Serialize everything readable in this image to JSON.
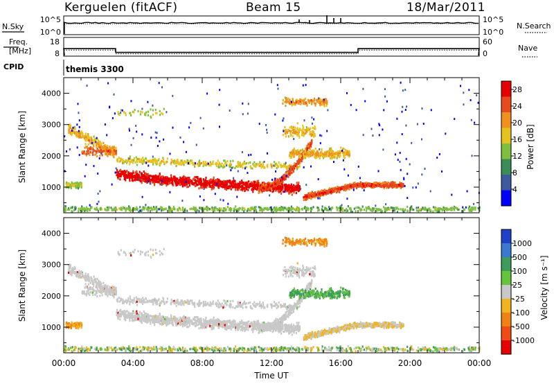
{
  "header": {
    "station": "Kerguelen (fitACF)",
    "beam": "Beam 15",
    "date": "18/Mar/2011"
  },
  "nsky_panel": {
    "left_label": "N.Sky",
    "left_ticks": [
      "10^5",
      "10^0"
    ],
    "right_ticks": [
      "10^5",
      "10^0"
    ],
    "right_label": "N.Search"
  },
  "freq_panel": {
    "left_label_line1": "Freq.",
    "left_label_line2": "[MHz]",
    "left_ticks": [
      "18",
      "8"
    ],
    "right_ticks": [
      "60",
      "0"
    ],
    "right_label": "Nave",
    "freq_steps": [
      {
        "start_hour": 0,
        "end_hour": 3,
        "mhz": 12
      },
      {
        "start_hour": 3,
        "end_hour": 17,
        "mhz": 10
      },
      {
        "start_hour": 17,
        "end_hour": 24,
        "mhz": 12
      }
    ]
  },
  "cpid": {
    "label": "CPID",
    "program": "themis 3300"
  },
  "chart_data": [
    {
      "type": "heatmap",
      "name": "power",
      "ylabel": "Slant Range [km]",
      "ylim": [
        180,
        4500
      ],
      "yticks": [
        "1000",
        "2000",
        "3000",
        "4000"
      ],
      "ytick_values": [
        1000,
        2000,
        3000,
        4000
      ],
      "colorbar_label": "Power [dB]",
      "colorbar_ticks": [
        "4",
        "8",
        "12",
        "16",
        "20",
        "24",
        "28"
      ],
      "colorbar_tick_values": [
        4,
        8,
        12,
        16,
        20,
        24,
        28
      ],
      "colorbar_range": [
        0,
        30
      ],
      "colorbar_colors": [
        "#0000ff",
        "#3c5aa0",
        "#3c8c5a",
        "#7fbf3f",
        "#e6c21e",
        "#f0901e",
        "#e64b1e",
        "#e60000"
      ]
    },
    {
      "type": "heatmap",
      "name": "velocity",
      "ylabel": "Slant Range [km]",
      "ylim": [
        180,
        4500
      ],
      "yticks": [
        "1000",
        "2000",
        "3000",
        "4000"
      ],
      "ytick_values": [
        1000,
        2000,
        3000,
        4000
      ],
      "xlabel": "Time UT",
      "xlim": [
        0,
        24
      ],
      "xticks": [
        "00:00",
        "04:00",
        "08:00",
        "12:00",
        "16:00",
        "20:00",
        "00:00"
      ],
      "xtick_values": [
        0,
        4,
        8,
        12,
        16,
        20,
        24
      ],
      "colorbar_label": "Velocity [m s⁻¹]",
      "colorbar_ticks": [
        "1000",
        "500",
        "100",
        "25",
        "-25",
        "-100",
        "-500",
        "-1000"
      ],
      "colorbar_colors": [
        "#2040c8",
        "#3a78d2",
        "#3c9c5a",
        "#66c33c",
        "#c8c8c8",
        "#f0b41e",
        "#f08214",
        "#f04b14",
        "#e60000"
      ]
    }
  ]
}
